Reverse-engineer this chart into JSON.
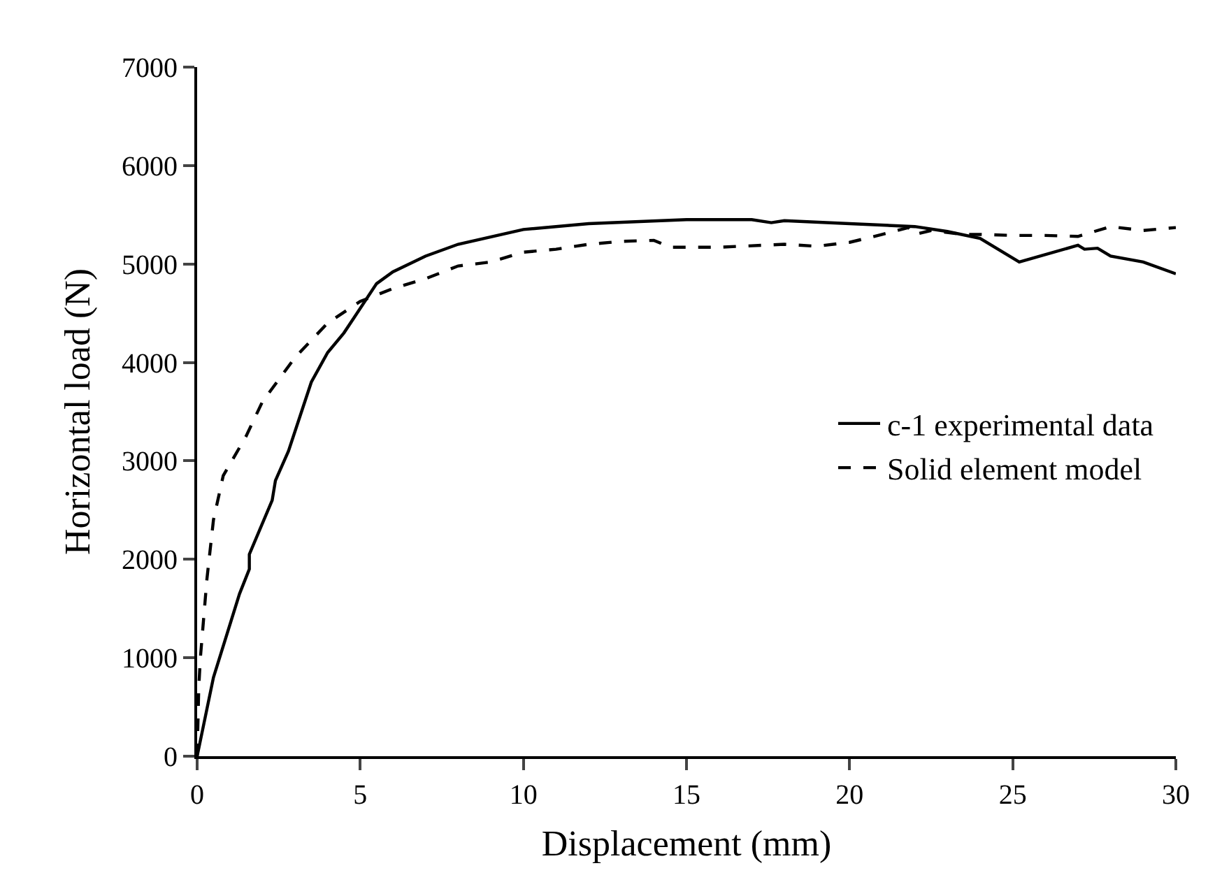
{
  "chart_data": {
    "type": "line",
    "xlabel": "Displacement (mm)",
    "ylabel": "Horizontal load (N)",
    "xlim": [
      0,
      30
    ],
    "xticks": [
      0,
      5,
      10,
      15,
      20,
      25,
      30
    ],
    "ylim": [
      0,
      7000
    ],
    "yticks": [
      0,
      1000,
      2000,
      3000,
      4000,
      5000,
      6000,
      7000
    ],
    "legend": "right",
    "marker": "none",
    "series": [
      {
        "name": "c-1 experimental data",
        "color": "#000000",
        "line_style": "solid",
        "x": [
          0,
          0.5,
          1.3,
          1.6,
          1.6,
          2.3,
          2.4,
          2.8,
          2.9,
          3.5,
          4,
          4.5,
          5.5,
          6,
          7,
          8,
          10,
          12,
          15,
          17,
          17.6,
          18,
          20,
          22,
          23,
          24,
          25.2,
          27,
          27.2,
          27.6,
          28,
          29,
          30
        ],
        "values": [
          0,
          800,
          1650,
          1900,
          2050,
          2600,
          2800,
          3100,
          3200,
          3800,
          4100,
          4300,
          4800,
          4920,
          5080,
          5200,
          5350,
          5410,
          5450,
          5450,
          5420,
          5440,
          5410,
          5380,
          5330,
          5260,
          5020,
          5190,
          5150,
          5160,
          5080,
          5020,
          4900
        ]
      },
      {
        "name": "Solid element model",
        "color": "#000000",
        "line_style": "dashed",
        "x": [
          0,
          0.05,
          0.1,
          0.3,
          0.5,
          0.8,
          1.5,
          2,
          3,
          4,
          5,
          6,
          7,
          8,
          9,
          10,
          11,
          12,
          13,
          14,
          14.5,
          16,
          18,
          19,
          20,
          21,
          21.8,
          22,
          22.5,
          23.5,
          24,
          25,
          26,
          27,
          28,
          29,
          30
        ],
        "values": [
          0,
          700,
          1000,
          1800,
          2400,
          2850,
          3250,
          3600,
          4050,
          4400,
          4620,
          4750,
          4850,
          4980,
          5020,
          5120,
          5150,
          5200,
          5230,
          5240,
          5170,
          5170,
          5200,
          5180,
          5220,
          5300,
          5370,
          5300,
          5340,
          5300,
          5300,
          5290,
          5290,
          5280,
          5380,
          5340,
          5370
        ]
      }
    ]
  }
}
